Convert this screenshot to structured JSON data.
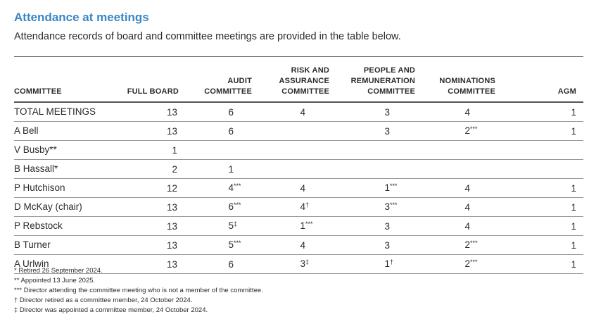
{
  "title": "Attendance at meetings",
  "subtitle": "Attendance records of board and committee meetings are provided in the table below.",
  "table": {
    "headers": [
      "COMMITTEE",
      "FULL BOARD",
      "AUDIT\nCOMMITTEE",
      "RISK AND\nASSURANCE\nCOMMITTEE",
      "PEOPLE AND\nREMUNERATION\nCOMMITTEE",
      "NOMINATIONS\nCOMMITTEE",
      "AGM"
    ],
    "rows": [
      {
        "name": "TOTAL MEETINGS",
        "cells": [
          {
            "v": "13",
            "m": ""
          },
          {
            "v": "6",
            "m": ""
          },
          {
            "v": "4",
            "m": ""
          },
          {
            "v": "3",
            "m": ""
          },
          {
            "v": "4",
            "m": ""
          },
          {
            "v": "1",
            "m": ""
          }
        ]
      },
      {
        "name": "A Bell",
        "cells": [
          {
            "v": "13",
            "m": ""
          },
          {
            "v": "6",
            "m": ""
          },
          {
            "v": "",
            "m": ""
          },
          {
            "v": "3",
            "m": ""
          },
          {
            "v": "2",
            "m": "***"
          },
          {
            "v": "1",
            "m": ""
          }
        ]
      },
      {
        "name": "V Busby**",
        "cells": [
          {
            "v": "1",
            "m": ""
          },
          {
            "v": "",
            "m": ""
          },
          {
            "v": "",
            "m": ""
          },
          {
            "v": "",
            "m": ""
          },
          {
            "v": "",
            "m": ""
          },
          {
            "v": "",
            "m": ""
          }
        ]
      },
      {
        "name": "B Hassall*",
        "cells": [
          {
            "v": "2",
            "m": ""
          },
          {
            "v": "1",
            "m": ""
          },
          {
            "v": "",
            "m": ""
          },
          {
            "v": "",
            "m": ""
          },
          {
            "v": "",
            "m": ""
          },
          {
            "v": "",
            "m": ""
          }
        ]
      },
      {
        "name": "P Hutchison",
        "cells": [
          {
            "v": "12",
            "m": ""
          },
          {
            "v": "4",
            "m": "***"
          },
          {
            "v": "4",
            "m": ""
          },
          {
            "v": "1",
            "m": "***"
          },
          {
            "v": "4",
            "m": ""
          },
          {
            "v": "1",
            "m": ""
          }
        ]
      },
      {
        "name": "D McKay (chair)",
        "cells": [
          {
            "v": "13",
            "m": ""
          },
          {
            "v": "6",
            "m": "***"
          },
          {
            "v": "4",
            "m": "†"
          },
          {
            "v": "3",
            "m": "***"
          },
          {
            "v": "4",
            "m": ""
          },
          {
            "v": "1",
            "m": ""
          }
        ]
      },
      {
        "name": "P Rebstock",
        "cells": [
          {
            "v": "13",
            "m": ""
          },
          {
            "v": "5",
            "m": "‡"
          },
          {
            "v": "1",
            "m": "***"
          },
          {
            "v": "3",
            "m": ""
          },
          {
            "v": "4",
            "m": ""
          },
          {
            "v": "1",
            "m": ""
          }
        ]
      },
      {
        "name": "B Turner",
        "cells": [
          {
            "v": "13",
            "m": ""
          },
          {
            "v": "5",
            "m": "***"
          },
          {
            "v": "4",
            "m": ""
          },
          {
            "v": "3",
            "m": ""
          },
          {
            "v": "2",
            "m": "***"
          },
          {
            "v": "1",
            "m": ""
          }
        ]
      },
      {
        "name": "A Urlwin",
        "cells": [
          {
            "v": "13",
            "m": ""
          },
          {
            "v": "6",
            "m": ""
          },
          {
            "v": "3",
            "m": "‡"
          },
          {
            "v": "1",
            "m": "†"
          },
          {
            "v": "2",
            "m": "***"
          },
          {
            "v": "1",
            "m": ""
          }
        ]
      }
    ]
  },
  "footnotes": [
    "* Retired 26 September 2024.",
    "** Appointed 13 June 2025.",
    "*** Director attending the committee meeting who is not a member of the committee.",
    "† Director retired as a committee member, 24 October 2024.",
    "‡ Director was appointed a committee member, 24 October 2024."
  ],
  "colors": {
    "title": "#3a86c4",
    "text": "#2b2b2b",
    "rule": "#555555"
  }
}
